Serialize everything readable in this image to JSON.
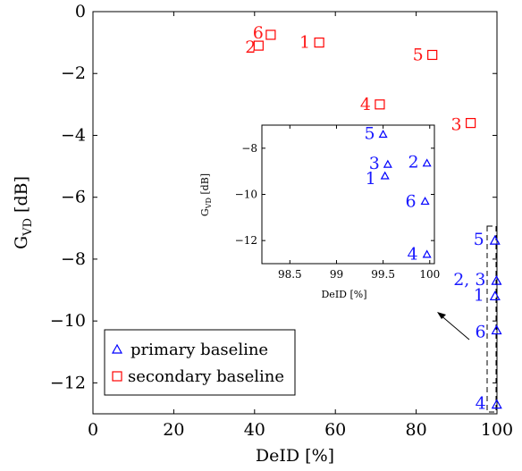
{
  "chart_data": [
    {
      "type": "scatter",
      "xlabel": "DeID [%]",
      "ylabel": "G_VD [dB]",
      "xlim": [
        0,
        100
      ],
      "ylim": [
        -13,
        0
      ],
      "xticks": [
        "0",
        "20",
        "40",
        "60",
        "80",
        "100"
      ],
      "yticks": [
        "0",
        "−2",
        "−4",
        "−6",
        "−8",
        "−10",
        "−12"
      ],
      "grid": false,
      "legend_position": "bottom-left",
      "series": [
        {
          "name": "primary baseline",
          "marker": "triangle",
          "color": "#0000ff",
          "points": [
            {
              "label": "1",
              "x": 99.52,
              "y": -9.2
            },
            {
              "label": "2, 3",
              "x": 99.88,
              "y": -8.7
            },
            {
              "label": "4",
              "x": 99.95,
              "y": -12.7
            },
            {
              "label": "5",
              "x": 99.5,
              "y": -7.4
            },
            {
              "label": "6",
              "x": 99.9,
              "y": -10.3
            }
          ]
        },
        {
          "name": "secondary baseline",
          "marker": "square",
          "color": "#ff0000",
          "points": [
            {
              "label": "1",
              "x": 56,
              "y": -1.0
            },
            {
              "label": "2",
              "x": 41,
              "y": -1.1
            },
            {
              "label": "3",
              "x": 93.5,
              "y": -3.6
            },
            {
              "label": "4",
              "x": 71,
              "y": -3.0
            },
            {
              "label": "5",
              "x": 84,
              "y": -1.4
            },
            {
              "label": "6",
              "x": 44,
              "y": -0.75
            }
          ]
        }
      ]
    },
    {
      "type": "scatter",
      "role": "inset",
      "xlabel": "DeID [%]",
      "ylabel": "G_VD [dB]",
      "xlim": [
        98.2,
        100.05
      ],
      "ylim": [
        -13,
        -7
      ],
      "xticks": [
        "98.5",
        "99",
        "99.5",
        "100"
      ],
      "yticks": [
        "−8",
        "−10",
        "−12"
      ],
      "series": [
        {
          "name": "primary baseline",
          "marker": "triangle",
          "color": "#0000ff",
          "points": [
            {
              "label": "1",
              "x": 99.52,
              "y": -9.2
            },
            {
              "label": "3",
              "x": 99.55,
              "y": -8.7
            },
            {
              "label": "2",
              "x": 99.97,
              "y": -8.65
            },
            {
              "label": "4",
              "x": 99.97,
              "y": -12.6
            },
            {
              "label": "5",
              "x": 99.5,
              "y": -7.4
            },
            {
              "label": "6",
              "x": 99.95,
              "y": -10.3
            }
          ]
        }
      ]
    }
  ],
  "legend": {
    "items": [
      {
        "label": "primary baseline",
        "marker": "triangle",
        "color": "#0000ff"
      },
      {
        "label": "secondary baseline",
        "marker": "square",
        "color": "#ff0000"
      }
    ]
  },
  "colors": {
    "primary": "#0000ff",
    "secondary": "#ff0000",
    "axis": "#000000"
  }
}
